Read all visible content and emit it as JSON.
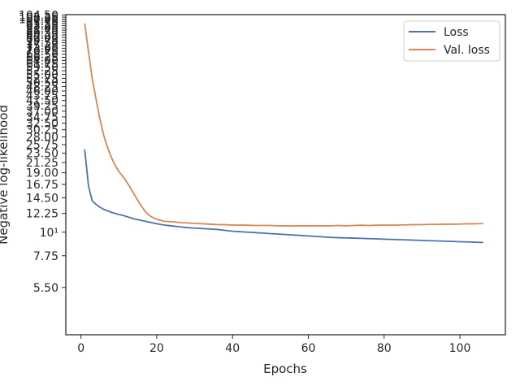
{
  "chart_data": {
    "type": "line",
    "xlabel": "Epochs",
    "ylabel": "Negative log-likelihood",
    "xlim": [
      -4,
      112
    ],
    "ylim": [
      3.3,
      105
    ],
    "y_scale": "log",
    "grid": false,
    "legend_position": "top-right",
    "x_ticks": [
      0,
      20,
      40,
      60,
      80,
      100
    ],
    "x_tick_labels": [
      "0",
      "20",
      "40",
      "60",
      "80",
      "100"
    ],
    "y_ticks": [
      5.5,
      7.75,
      10,
      12.25,
      14.5,
      16.75,
      19.0,
      21.25,
      23.5,
      25.75,
      28.0,
      30.25,
      32.5,
      34.75,
      37.0,
      39.25,
      41.5,
      43.75,
      46.0,
      48.25,
      50.5,
      52.75,
      55.0,
      57.25,
      59.5,
      61.75,
      64.0,
      66.25,
      68.5,
      70.75,
      73.0,
      75.25,
      77.5,
      79.75,
      82.0,
      84.25,
      86.5,
      88.75,
      91.0,
      93.25,
      95.5,
      97.75,
      100.0,
      102.25,
      104.5
    ],
    "y_tick_labels": [
      "5.50",
      "7.75",
      "10¹",
      "12.25",
      "14.50",
      "16.75",
      "19.00",
      "21.25",
      "23.50",
      "25.75",
      "28.00",
      "30.25",
      "32.50",
      "34.75",
      "37.00",
      "39.25",
      "41.50",
      "43.75",
      "46.00",
      "48.25",
      "50.50",
      "52.75",
      "55.00",
      "57.25",
      "59.50",
      "61.75",
      "64.00",
      "66.25",
      "68.50",
      "70.75",
      "73.00",
      "75.25",
      "77.50",
      "79.75",
      "82.00",
      "84.25",
      "86.50",
      "88.75",
      "91.00",
      "93.25",
      "95.50",
      "97.75",
      "100.00",
      "102.25",
      "104.50"
    ],
    "series": [
      {
        "name": "Loss",
        "color": "#4c72b0",
        "x": [
          1,
          2,
          3,
          4,
          5,
          6,
          7,
          8,
          9,
          10,
          11,
          12,
          13,
          14,
          15,
          16,
          17,
          18,
          19,
          20,
          22,
          24,
          26,
          28,
          30,
          32,
          34,
          36,
          38,
          40,
          42,
          44,
          46,
          48,
          50,
          52,
          54,
          56,
          58,
          60,
          62,
          64,
          66,
          68,
          70,
          72,
          74,
          76,
          78,
          80,
          82,
          84,
          86,
          88,
          90,
          92,
          94,
          96,
          98,
          100,
          102,
          104,
          106
        ],
        "y": [
          24.3,
          16.4,
          14.0,
          13.5,
          13.1,
          12.8,
          12.6,
          12.4,
          12.25,
          12.1,
          12.0,
          11.85,
          11.7,
          11.55,
          11.45,
          11.35,
          11.25,
          11.15,
          11.05,
          10.95,
          10.8,
          10.7,
          10.6,
          10.5,
          10.45,
          10.4,
          10.35,
          10.3,
          10.2,
          10.1,
          10.05,
          10.0,
          9.95,
          9.9,
          9.85,
          9.8,
          9.75,
          9.7,
          9.65,
          9.6,
          9.55,
          9.5,
          9.45,
          9.42,
          9.4,
          9.38,
          9.35,
          9.32,
          9.3,
          9.27,
          9.25,
          9.22,
          9.2,
          9.17,
          9.15,
          9.12,
          9.1,
          9.07,
          9.05,
          9.02,
          9.0,
          8.97,
          8.95
        ]
      },
      {
        "name": "Val. loss",
        "color": "#dd8452",
        "x": [
          1,
          2,
          3,
          4,
          5,
          6,
          7,
          8,
          9,
          10,
          11,
          12,
          13,
          14,
          15,
          16,
          17,
          18,
          19,
          20,
          22,
          24,
          26,
          28,
          30,
          32,
          34,
          36,
          38,
          40,
          42,
          44,
          46,
          48,
          50,
          52,
          54,
          56,
          58,
          60,
          62,
          64,
          66,
          68,
          70,
          72,
          74,
          76,
          78,
          80,
          82,
          84,
          86,
          88,
          90,
          92,
          94,
          96,
          98,
          100,
          102,
          104,
          106
        ],
        "y": [
          95.0,
          70.0,
          52.0,
          42.0,
          34.0,
          28.5,
          25.0,
          22.5,
          20.6,
          19.3,
          18.3,
          17.3,
          16.2,
          15.1,
          14.1,
          13.2,
          12.5,
          12.0,
          11.7,
          11.5,
          11.25,
          11.2,
          11.1,
          11.05,
          11.0,
          10.95,
          10.9,
          10.85,
          10.85,
          10.8,
          10.8,
          10.78,
          10.75,
          10.75,
          10.75,
          10.72,
          10.7,
          10.7,
          10.72,
          10.7,
          10.72,
          10.7,
          10.72,
          10.75,
          10.72,
          10.75,
          10.78,
          10.75,
          10.78,
          10.8,
          10.8,
          10.8,
          10.82,
          10.85,
          10.85,
          10.88,
          10.88,
          10.9,
          10.9,
          10.92,
          10.95,
          10.95,
          10.98
        ]
      }
    ]
  }
}
